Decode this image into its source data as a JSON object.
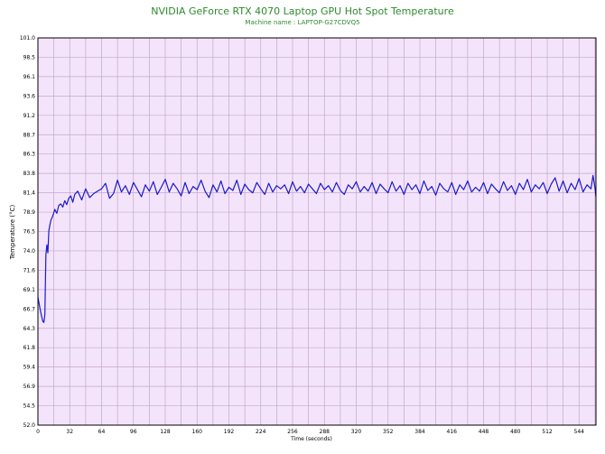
{
  "chart_data": {
    "type": "line",
    "title": "NVIDIA GeForce RTX 4070 Laptop GPU Hot Spot Temperature",
    "subtitle": "Machine name : LAPTOP-G27CDVQ5",
    "xlabel": "Time (seconds)",
    "ylabel": "Temperature (°C)",
    "xlim": [
      0,
      561
    ],
    "ylim": [
      52.0,
      101.0
    ],
    "x_ticks": [
      0,
      16,
      32,
      48,
      64,
      80,
      96,
      112,
      128,
      144,
      160,
      176,
      192,
      208,
      224,
      240,
      256,
      272,
      288,
      304,
      320,
      336,
      352,
      368,
      384,
      400,
      416,
      432,
      448,
      464,
      480,
      496,
      512,
      528,
      544,
      560
    ],
    "x_tick_labels": [
      "0",
      "32",
      "64",
      "96",
      "128",
      "160",
      "192",
      "224",
      "256",
      "288",
      "320",
      "352",
      "384",
      "416",
      "448",
      "480",
      "512",
      "544"
    ],
    "y_tick_labels": [
      "101.0",
      "98.5",
      "96.1",
      "93.6",
      "91.2",
      "88.7",
      "86.3",
      "83.8",
      "81.4",
      "78.9",
      "76.5",
      "74.0",
      "71.6",
      "69.1",
      "66.7",
      "64.3",
      "61.8",
      "59.4",
      "56.9",
      "54.5",
      "52.0"
    ],
    "grid": true,
    "colors": {
      "background": "#f4e4fb",
      "grid": "#c4a6cc",
      "line": "#1a1acc",
      "title": "#2e8b2e"
    },
    "series": [
      {
        "x": [
          0,
          1,
          2,
          3,
          4,
          5,
          6,
          7,
          8,
          9,
          10,
          11,
          12,
          13,
          15,
          17,
          19,
          21,
          23,
          25,
          27,
          29,
          31,
          33,
          35,
          37,
          40,
          44,
          48,
          52,
          56,
          60,
          64,
          68,
          72,
          76,
          80,
          84,
          88,
          92,
          96,
          100,
          104,
          108,
          112,
          116,
          120,
          124,
          128,
          132,
          136,
          140,
          144,
          148,
          152,
          156,
          160,
          164,
          168,
          172,
          176,
          180,
          184,
          188,
          192,
          196,
          200,
          204,
          208,
          212,
          216,
          220,
          224,
          228,
          232,
          236,
          240,
          244,
          248,
          252,
          256,
          260,
          264,
          268,
          272,
          276,
          280,
          284,
          288,
          292,
          296,
          300,
          304,
          308,
          312,
          316,
          320,
          324,
          328,
          332,
          336,
          340,
          344,
          348,
          352,
          356,
          360,
          364,
          368,
          372,
          376,
          380,
          384,
          388,
          392,
          396,
          400,
          404,
          408,
          412,
          416,
          420,
          424,
          428,
          432,
          436,
          440,
          444,
          448,
          452,
          456,
          460,
          464,
          468,
          472,
          476,
          480,
          484,
          488,
          492,
          496,
          500,
          504,
          508,
          512,
          516,
          520,
          524,
          528,
          532,
          536,
          540,
          544,
          548,
          552,
          556,
          558,
          560,
          561
        ],
        "y": [
          68.2,
          67.5,
          66.8,
          66.2,
          65.6,
          65.1,
          65.0,
          66.0,
          73.5,
          74.8,
          73.8,
          76.6,
          77.3,
          77.9,
          78.5,
          79.3,
          78.8,
          79.8,
          80.0,
          79.6,
          80.4,
          79.9,
          80.7,
          81.0,
          80.2,
          81.2,
          81.6,
          80.5,
          81.9,
          80.8,
          81.3,
          81.6,
          81.9,
          82.6,
          80.7,
          81.3,
          83.0,
          81.5,
          82.3,
          81.2,
          82.7,
          81.8,
          80.9,
          82.4,
          81.6,
          82.8,
          81.2,
          82.1,
          83.1,
          81.5,
          82.6,
          81.9,
          81.0,
          82.7,
          81.3,
          82.2,
          81.8,
          83.0,
          81.6,
          80.8,
          82.4,
          81.5,
          82.9,
          81.3,
          82.1,
          81.7,
          83.0,
          81.2,
          82.5,
          81.8,
          81.4,
          82.7,
          81.9,
          81.2,
          82.6,
          81.5,
          82.3,
          81.9,
          82.4,
          81.3,
          82.8,
          81.6,
          82.2,
          81.4,
          82.5,
          81.9,
          81.3,
          82.6,
          81.8,
          82.3,
          81.5,
          82.7,
          81.7,
          81.2,
          82.4,
          81.9,
          82.8,
          81.5,
          82.2,
          81.6,
          82.7,
          81.3,
          82.5,
          81.9,
          81.4,
          82.8,
          81.6,
          82.3,
          81.2,
          82.6,
          81.8,
          82.4,
          81.3,
          82.9,
          81.7,
          82.2,
          81.1,
          82.6,
          81.9,
          81.5,
          82.7,
          81.2,
          82.4,
          81.8,
          82.9,
          81.5,
          82.1,
          81.6,
          82.7,
          81.3,
          82.5,
          81.9,
          81.4,
          82.8,
          81.7,
          82.3,
          81.2,
          82.6,
          81.8,
          83.1,
          81.5,
          82.4,
          81.9,
          82.7,
          81.3,
          82.5,
          83.3,
          81.6,
          82.9,
          81.4,
          82.6,
          81.8,
          83.2,
          81.5,
          82.4,
          81.9,
          83.6,
          82.0,
          80.9
        ]
      }
    ]
  }
}
